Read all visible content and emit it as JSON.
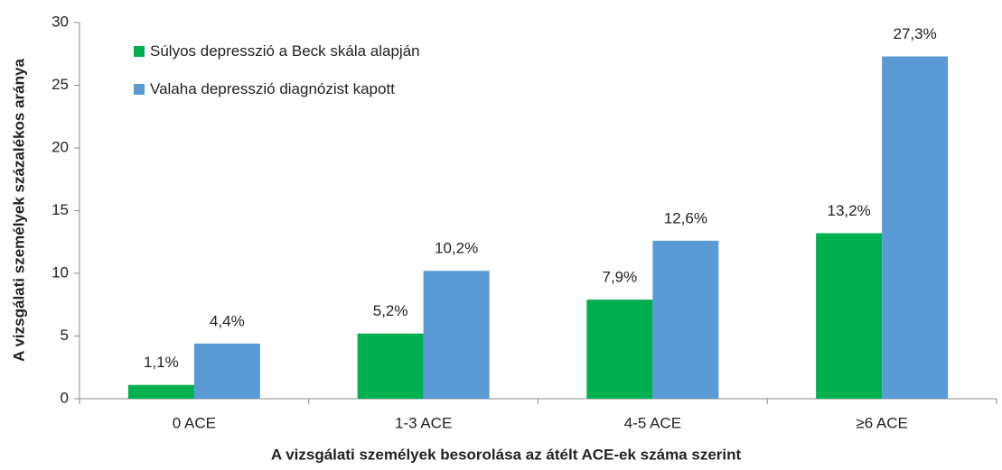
{
  "chart_data": {
    "type": "bar",
    "xlabel": "A vizsgálati személyek besorolása az átélt ACE-ek száma szerint",
    "ylabel": "A vizsgálati személyek százalékos aránya",
    "categories": [
      "0 ACE",
      "1-3 ACE",
      "4-5 ACE",
      "≥6 ACE"
    ],
    "series": [
      {
        "name": "Súlyos depresszió a Beck skála alapján",
        "color": "#00b050",
        "values": [
          1.1,
          5.2,
          7.9,
          13.2
        ],
        "value_labels": [
          "1,1%",
          "5,2%",
          "7,9%",
          "13,2%"
        ]
      },
      {
        "name": "Valaha depresszió diagnózist kapott",
        "color": "#5b9bd5",
        "values": [
          4.4,
          10.2,
          12.6,
          27.3
        ],
        "value_labels": [
          "4,4%",
          "10,2%",
          "12,6%",
          "27,3%"
        ]
      }
    ],
    "ylim": [
      0,
      30
    ],
    "yticks": [
      0,
      5,
      10,
      15,
      20,
      25,
      30
    ],
    "grid": false,
    "legend": "upper left"
  }
}
